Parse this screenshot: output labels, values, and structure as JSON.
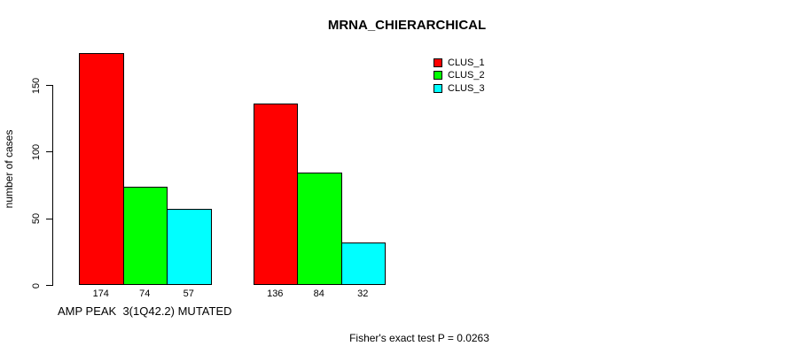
{
  "title": "MRNA_CHIERARCHICAL",
  "footer": "Fisher's exact test P = 0.0263",
  "chart_data": {
    "type": "bar",
    "title": "MRNA_CHIERARCHICAL",
    "xlabel": "",
    "ylabel": "number of cases",
    "ylim": [
      0,
      150
    ],
    "yticks": [
      0,
      50,
      100,
      150
    ],
    "grid": false,
    "legend_position": "top-right",
    "bar_value_labels_shown": true,
    "categories": [
      "AMP PEAK  3(1Q42.2) MUTATED",
      ""
    ],
    "series": [
      {
        "name": "CLUS_1",
        "color": "#ff0000",
        "values": [
          174,
          136
        ]
      },
      {
        "name": "CLUS_2",
        "color": "#00ff00",
        "values": [
          74,
          84
        ]
      },
      {
        "name": "CLUS_3",
        "color": "#00ffff",
        "values": [
          57,
          32
        ]
      }
    ],
    "annotation": "Fisher's exact test P = 0.0263",
    "axis_color": "#000000",
    "bar_border_color": "#000000"
  }
}
